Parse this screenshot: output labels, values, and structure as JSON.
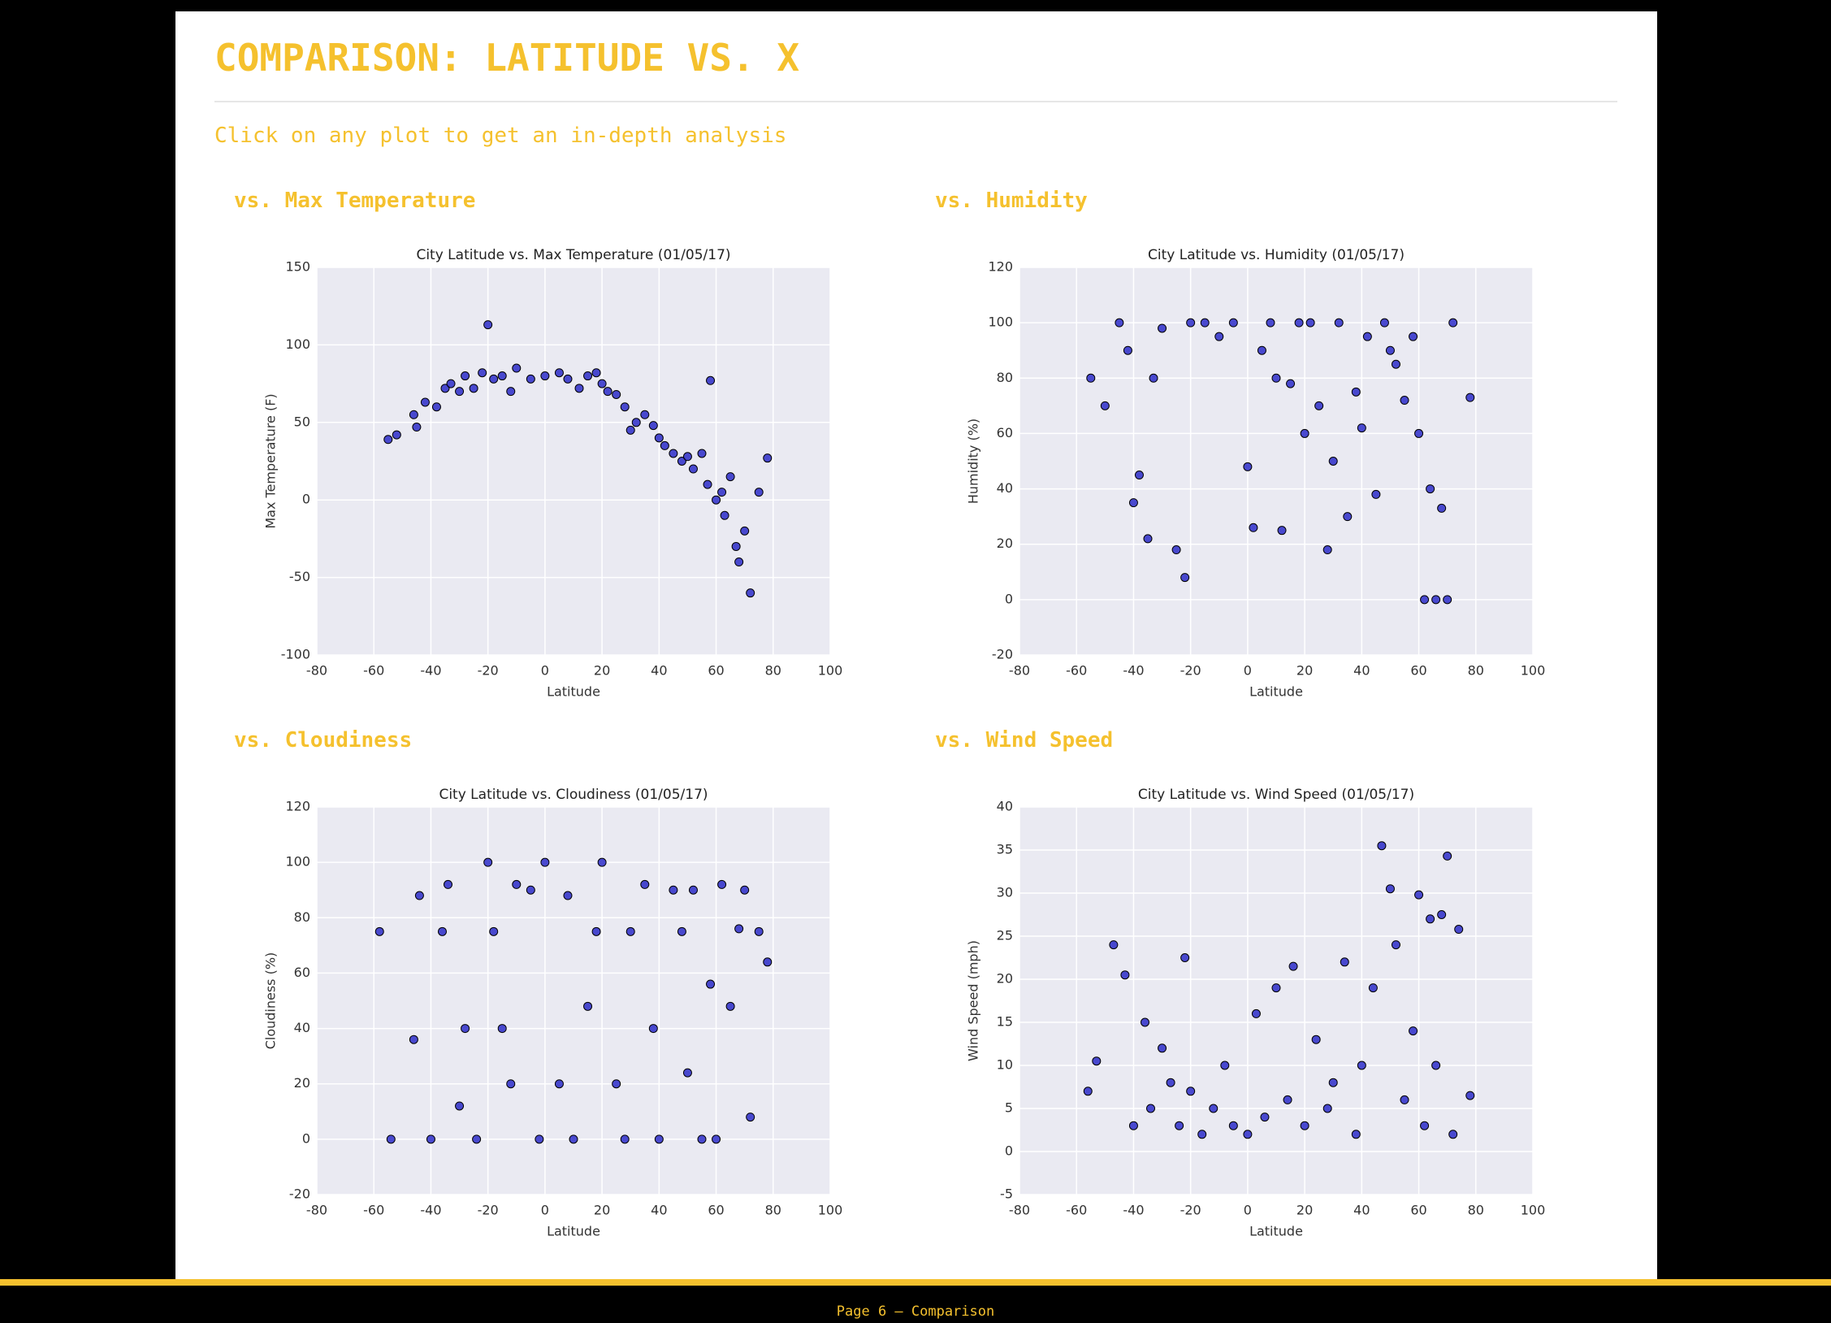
{
  "title": "COMPARISON: LATITUDE VS. X",
  "subtitle": "Click on any plot to get an in-depth analysis",
  "section_headings": [
    "vs. Max Temperature",
    "vs. Humidity",
    "vs. Cloudiness",
    "vs. Wind Speed"
  ],
  "footer": "Page 6 – Comparison",
  "chart_data": [
    {
      "type": "scatter",
      "title": "City Latitude vs. Max Temperature (01/05/17)",
      "x_label": "Latitude",
      "y_label": "Max Temperature (F)",
      "x": [
        -55,
        -52,
        -46,
        -45,
        -42,
        -38,
        -35,
        -33,
        -30,
        -28,
        -25,
        -22,
        -20,
        -18,
        -15,
        -12,
        -10,
        -5,
        0,
        5,
        8,
        12,
        15,
        18,
        20,
        22,
        25,
        28,
        30,
        32,
        35,
        38,
        40,
        42,
        45,
        48,
        50,
        52,
        55,
        57,
        58,
        60,
        62,
        63,
        65,
        67,
        68,
        70,
        72,
        75,
        78
      ],
      "y": [
        39,
        42,
        55,
        47,
        63,
        60,
        72,
        75,
        70,
        80,
        72,
        82,
        113,
        78,
        80,
        70,
        85,
        78,
        80,
        82,
        78,
        72,
        80,
        82,
        75,
        70,
        68,
        60,
        45,
        50,
        55,
        48,
        40,
        35,
        30,
        25,
        28,
        20,
        30,
        10,
        77,
        0,
        5,
        -10,
        15,
        -30,
        -40,
        -20,
        -60,
        5,
        27
      ],
      "xlim": [
        -80,
        100
      ],
      "xticks": [
        -80,
        -60,
        -40,
        -20,
        0,
        20,
        40,
        60,
        80,
        100
      ],
      "ylim": [
        -100,
        150
      ],
      "yticks": [
        -100,
        -50,
        0,
        50,
        100,
        150
      ],
      "color": "#2b2bc8",
      "grid": true
    },
    {
      "type": "scatter",
      "title": "City Latitude vs. Humidity (01/05/17)",
      "x_label": "Latitude",
      "y_label": "Humidity (%)",
      "x": [
        -55,
        -50,
        -45,
        -42,
        -40,
        -38,
        -35,
        -33,
        -30,
        -25,
        -22,
        -20,
        -15,
        -10,
        -5,
        0,
        2,
        5,
        8,
        10,
        12,
        15,
        18,
        20,
        22,
        25,
        28,
        30,
        32,
        35,
        38,
        40,
        42,
        45,
        48,
        50,
        52,
        55,
        58,
        60,
        62,
        64,
        66,
        68,
        70,
        72,
        78
      ],
      "y": [
        80,
        70,
        100,
        90,
        35,
        45,
        22,
        80,
        98,
        18,
        8,
        100,
        100,
        95,
        100,
        48,
        26,
        90,
        100,
        80,
        25,
        78,
        100,
        60,
        100,
        70,
        18,
        50,
        100,
        30,
        75,
        62,
        95,
        38,
        100,
        90,
        85,
        72,
        95,
        60,
        0,
        40,
        0,
        33,
        0,
        100,
        73
      ],
      "xlim": [
        -80,
        100
      ],
      "xticks": [
        -80,
        -60,
        -40,
        -20,
        0,
        20,
        40,
        60,
        80,
        100
      ],
      "ylim": [
        -20,
        120
      ],
      "yticks": [
        -20,
        0,
        20,
        40,
        60,
        80,
        100,
        120
      ],
      "color": "#2b2bc8",
      "grid": true
    },
    {
      "type": "scatter",
      "title": "City Latitude vs. Cloudiness (01/05/17)",
      "x_label": "Latitude",
      "y_label": "Cloudiness (%)",
      "x": [
        -58,
        -54,
        -46,
        -44,
        -40,
        -36,
        -34,
        -30,
        -28,
        -24,
        -20,
        -18,
        -15,
        -12,
        -10,
        -5,
        -2,
        0,
        5,
        8,
        10,
        15,
        18,
        20,
        25,
        28,
        30,
        35,
        38,
        40,
        45,
        48,
        50,
        52,
        55,
        58,
        60,
        62,
        65,
        68,
        70,
        72,
        75,
        78
      ],
      "y": [
        75,
        0,
        36,
        88,
        0,
        75,
        92,
        12,
        40,
        0,
        100,
        75,
        40,
        20,
        92,
        90,
        0,
        100,
        20,
        88,
        0,
        48,
        75,
        100,
        20,
        0,
        75,
        92,
        40,
        0,
        90,
        75,
        24,
        90,
        0,
        56,
        0,
        92,
        48,
        76,
        90,
        8,
        75,
        64
      ],
      "xlim": [
        -80,
        100
      ],
      "xticks": [
        -80,
        -60,
        -40,
        -20,
        0,
        20,
        40,
        60,
        80,
        100
      ],
      "ylim": [
        -20,
        120
      ],
      "yticks": [
        -20,
        0,
        20,
        40,
        60,
        80,
        100,
        120
      ],
      "color": "#2b2bc8",
      "grid": true
    },
    {
      "type": "scatter",
      "title": "City Latitude vs. Wind Speed (01/05/17)",
      "x_label": "Latitude",
      "y_label": "Wind Speed (mph)",
      "x": [
        -56,
        -53,
        -47,
        -43,
        -40,
        -36,
        -34,
        -30,
        -27,
        -24,
        -22,
        -20,
        -16,
        -12,
        -8,
        -5,
        0,
        3,
        6,
        10,
        14,
        16,
        20,
        24,
        28,
        30,
        34,
        38,
        40,
        44,
        47,
        50,
        52,
        55,
        58,
        60,
        62,
        64,
        66,
        68,
        70,
        72,
        74,
        78
      ],
      "y": [
        7,
        10.5,
        24,
        20.5,
        3,
        15,
        5,
        12,
        8,
        3,
        22.5,
        7,
        2,
        5,
        10,
        3,
        2,
        16,
        4,
        19,
        6,
        21.5,
        3,
        13,
        5,
        8,
        22,
        2,
        10,
        19,
        35.5,
        30.5,
        24,
        6,
        14,
        29.8,
        3,
        27,
        10,
        27.5,
        34.3,
        2,
        25.8,
        6.5
      ],
      "xlim": [
        -80,
        100
      ],
      "xticks": [
        -80,
        -60,
        -40,
        -20,
        0,
        20,
        40,
        60,
        80,
        100
      ],
      "ylim": [
        -5,
        40
      ],
      "yticks": [
        -5,
        0,
        5,
        10,
        15,
        20,
        25,
        30,
        35,
        40
      ],
      "color": "#2b2bc8",
      "grid": true
    }
  ]
}
